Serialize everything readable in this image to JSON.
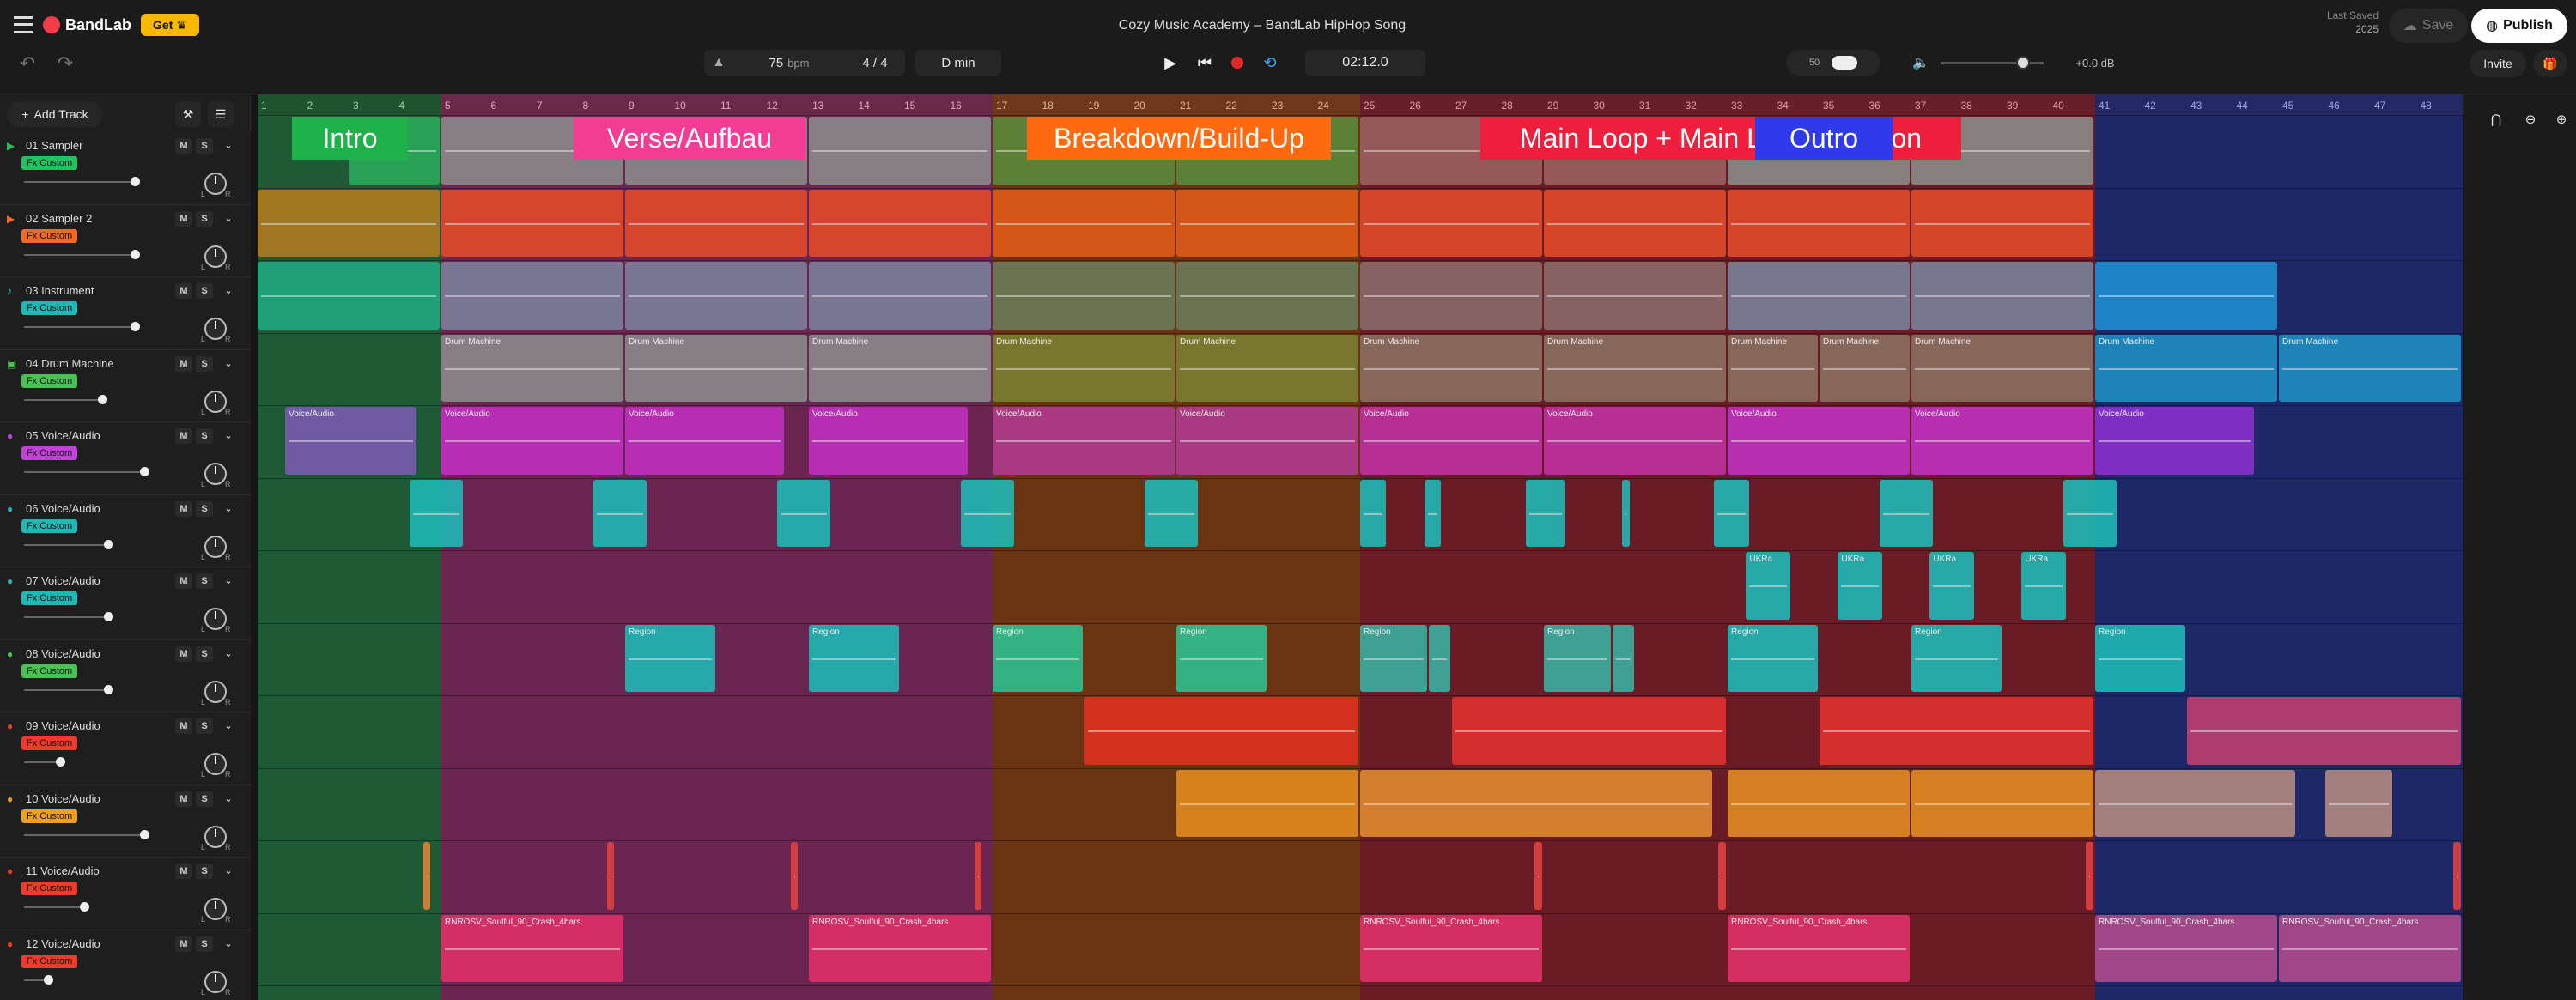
{
  "app": {
    "logo": "BandLab",
    "get_label": "Get",
    "song_title": "Cozy Music Academy – BandLab HipHop Song",
    "last_saved": "Last Saved",
    "last_saved_date": "2025",
    "save_label": "Save",
    "publish_label": "Publish",
    "invite_label": "Invite"
  },
  "transport": {
    "bpm": "75",
    "bpm_unit": "bpm",
    "time_sig": "4 / 4",
    "key": "D min",
    "time": "02:12.0",
    "volume_db": "+0.0 dB",
    "input_level": "50"
  },
  "sidebar": {
    "add_track_label": "Add Track"
  },
  "sections": [
    {
      "label": "Intro",
      "bg": "#1fb14a",
      "start": 1,
      "end": 5
    },
    {
      "label": "Verse/Aufbau",
      "bg": "#f33c94",
      "start": 5,
      "end": 17
    },
    {
      "label": "Breakdown/Build-Up",
      "bg": "#ff6a10",
      "start": 17,
      "end": 25
    },
    {
      "label": "Main Loop + Main Loop Variation",
      "bg": "#ee1f3c",
      "start": 25,
      "end": 41
    },
    {
      "label": "Outro",
      "bg": "#2f3bea",
      "start": 41,
      "end": 49
    }
  ],
  "ruler": [
    "1",
    "2",
    "3",
    "4",
    "5",
    "6",
    "7",
    "8",
    "9",
    "10",
    "11",
    "12",
    "13",
    "14",
    "15",
    "16",
    "17",
    "18",
    "19",
    "20",
    "21",
    "22",
    "23",
    "24",
    "25",
    "26",
    "27",
    "28",
    "29",
    "30",
    "31",
    "32",
    "33",
    "34",
    "35",
    "36",
    "37",
    "38",
    "39",
    "40",
    "41",
    "42",
    "43",
    "44",
    "45",
    "46",
    "47",
    "48"
  ],
  "tracks": [
    {
      "name": "01  Sampler",
      "fx": "Fx Custom",
      "color": "#23c261",
      "icon": "play-icon",
      "vol": 0.92
    },
    {
      "name": "02  Sampler 2",
      "fx": "Fx Custom",
      "color": "#f06a24",
      "icon": "play-icon",
      "vol": 0.92
    },
    {
      "name": "03  Instrument",
      "fx": "Fx Custom",
      "color": "#1fb8b5",
      "icon": "guitar-icon",
      "vol": 0.92
    },
    {
      "name": "04  Drum Machine",
      "fx": "Fx Custom",
      "color": "#4ac253",
      "icon": "drum-icon",
      "vol": 0.65
    },
    {
      "name": "05  Voice/Audio",
      "fx": "Fx Custom",
      "color": "#c142d9",
      "icon": "mic-icon",
      "vol": 1.0
    },
    {
      "name": "06  Voice/Audio",
      "fx": "Fx Custom",
      "color": "#1fb8b5",
      "icon": "mic-icon",
      "vol": 0.7
    },
    {
      "name": "07  Voice/Audio",
      "fx": "Fx Custom",
      "color": "#1fb8b5",
      "icon": "mic-icon",
      "vol": 0.7
    },
    {
      "name": "08  Voice/Audio",
      "fx": "Fx Custom",
      "color": "#4ac253",
      "icon": "mic-icon",
      "vol": 0.7
    },
    {
      "name": "09  Voice/Audio",
      "fx": "Fx Custom",
      "color": "#ee3b2a",
      "icon": "mic-icon",
      "vol": 0.3
    },
    {
      "name": "10  Voice/Audio",
      "fx": "Fx Custom",
      "color": "#f0a020",
      "icon": "mic-icon",
      "vol": 1.0
    },
    {
      "name": "11  Voice/Audio",
      "fx": "Fx Custom",
      "color": "#ee3b2a",
      "icon": "mic-icon",
      "vol": 0.5
    },
    {
      "name": "12  Voice/Audio",
      "fx": "Fx Custom",
      "color": "#ee3b2a",
      "icon": "mic-icon",
      "vol": 0.2
    }
  ],
  "clips": [
    {
      "t": 0,
      "s": 3,
      "e": 5,
      "c": "#2aa85a",
      "l": ""
    },
    {
      "t": 0,
      "s": 5,
      "e": 9,
      "c": "#8a8a8a",
      "l": ""
    },
    {
      "t": 0,
      "s": 9,
      "e": 13,
      "c": "#8a8a8a",
      "l": ""
    },
    {
      "t": 0,
      "s": 13,
      "e": 17,
      "c": "#8a8a8a",
      "l": ""
    },
    {
      "t": 0,
      "s": 17,
      "e": 21,
      "c": "#5b8a3a",
      "l": ""
    },
    {
      "t": 0,
      "s": 21,
      "e": 25,
      "c": "#5b8a3a",
      "l": ""
    },
    {
      "t": 0,
      "s": 25,
      "e": 29,
      "c": "#9a6060",
      "l": ""
    },
    {
      "t": 0,
      "s": 29,
      "e": 33,
      "c": "#9a6060",
      "l": ""
    },
    {
      "t": 0,
      "s": 33,
      "e": 37,
      "c": "#8a8a8a",
      "l": ""
    },
    {
      "t": 0,
      "s": 37,
      "e": 41,
      "c": "#8a8a8a",
      "l": ""
    },
    {
      "t": 1,
      "s": 1,
      "e": 5,
      "c": "#b07a20",
      "l": ""
    },
    {
      "t": 1,
      "s": 5,
      "e": 9,
      "c": "#e04a2a",
      "l": ""
    },
    {
      "t": 1,
      "s": 9,
      "e": 13,
      "c": "#e04a2a",
      "l": ""
    },
    {
      "t": 1,
      "s": 13,
      "e": 17,
      "c": "#e04a2a",
      "l": ""
    },
    {
      "t": 1,
      "s": 17,
      "e": 21,
      "c": "#e05a18",
      "l": ""
    },
    {
      "t": 1,
      "s": 21,
      "e": 25,
      "c": "#e05a18",
      "l": ""
    },
    {
      "t": 1,
      "s": 25,
      "e": 29,
      "c": "#e04a2a",
      "l": ""
    },
    {
      "t": 1,
      "s": 29,
      "e": 33,
      "c": "#e04a2a",
      "l": ""
    },
    {
      "t": 1,
      "s": 33,
      "e": 37,
      "c": "#e04a2a",
      "l": ""
    },
    {
      "t": 1,
      "s": 37,
      "e": 41,
      "c": "#e04a2a",
      "l": ""
    },
    {
      "t": 2,
      "s": 1,
      "e": 5,
      "c": "#1fa880",
      "l": ""
    },
    {
      "t": 2,
      "s": 5,
      "e": 9,
      "c": "#7a7f9a",
      "l": ""
    },
    {
      "t": 2,
      "s": 9,
      "e": 13,
      "c": "#7a7f9a",
      "l": ""
    },
    {
      "t": 2,
      "s": 13,
      "e": 17,
      "c": "#7a7f9a",
      "l": ""
    },
    {
      "t": 2,
      "s": 17,
      "e": 21,
      "c": "#6a7a5a",
      "l": ""
    },
    {
      "t": 2,
      "s": 21,
      "e": 25,
      "c": "#6a7a5a",
      "l": ""
    },
    {
      "t": 2,
      "s": 25,
      "e": 29,
      "c": "#8a6a6a",
      "l": ""
    },
    {
      "t": 2,
      "s": 29,
      "e": 33,
      "c": "#8a6a6a",
      "l": ""
    },
    {
      "t": 2,
      "s": 33,
      "e": 37,
      "c": "#7a7f9a",
      "l": ""
    },
    {
      "t": 2,
      "s": 37,
      "e": 41,
      "c": "#7a7f9a",
      "l": ""
    },
    {
      "t": 2,
      "s": 41,
      "e": 45,
      "c": "#1f8fd0",
      "l": ""
    },
    {
      "t": 3,
      "s": 5,
      "e": 9,
      "c": "#8a8a8a",
      "l": "Drum Machine"
    },
    {
      "t": 3,
      "s": 9,
      "e": 13,
      "c": "#8a8a8a",
      "l": "Drum Machine"
    },
    {
      "t": 3,
      "s": 13,
      "e": 17,
      "c": "#8a8a8a",
      "l": "Drum Machine"
    },
    {
      "t": 3,
      "s": 17,
      "e": 21,
      "c": "#7a7f30",
      "l": "Drum Machine"
    },
    {
      "t": 3,
      "s": 21,
      "e": 25,
      "c": "#7a7f30",
      "l": "Drum Machine"
    },
    {
      "t": 3,
      "s": 25,
      "e": 29,
      "c": "#8a7060",
      "l": "Drum Machine"
    },
    {
      "t": 3,
      "s": 29,
      "e": 33,
      "c": "#8a7060",
      "l": "Drum Machine"
    },
    {
      "t": 3,
      "s": 33,
      "e": 35,
      "c": "#8a7060",
      "l": "Drum Machine"
    },
    {
      "t": 3,
      "s": 35,
      "e": 37,
      "c": "#8a7060",
      "l": "Drum Machine"
    },
    {
      "t": 3,
      "s": 37,
      "e": 41,
      "c": "#8a7060",
      "l": "Drum Machine"
    },
    {
      "t": 3,
      "s": 41,
      "e": 45,
      "c": "#1f8fc0",
      "l": "Drum Machine"
    },
    {
      "t": 3,
      "s": 45,
      "e": 49,
      "c": "#1f8fc0",
      "l": "Drum Machine"
    },
    {
      "t": 4,
      "s": 1.6,
      "e": 4.5,
      "c": "#7a5ab0",
      "l": "Voice/Audio"
    },
    {
      "t": 4,
      "s": 5,
      "e": 9,
      "c": "#c030c0",
      "l": "Voice/Audio"
    },
    {
      "t": 4,
      "s": 9,
      "e": 12.5,
      "c": "#c030c0",
      "l": "Voice/Audio"
    },
    {
      "t": 4,
      "s": 13,
      "e": 16.5,
      "c": "#c030c0",
      "l": "Voice/Audio"
    },
    {
      "t": 4,
      "s": 17,
      "e": 21,
      "c": "#b03a90",
      "l": "Voice/Audio"
    },
    {
      "t": 4,
      "s": 21,
      "e": 25,
      "c": "#b03a90",
      "l": "Voice/Audio"
    },
    {
      "t": 4,
      "s": 25,
      "e": 29,
      "c": "#c030a0",
      "l": "Voice/Audio"
    },
    {
      "t": 4,
      "s": 29,
      "e": 33,
      "c": "#c030a0",
      "l": "Voice/Audio"
    },
    {
      "t": 4,
      "s": 33,
      "e": 37,
      "c": "#c030c0",
      "l": "Voice/Audio"
    },
    {
      "t": 4,
      "s": 37,
      "e": 41,
      "c": "#c030c0",
      "l": "Voice/Audio"
    },
    {
      "t": 4,
      "s": 41,
      "e": 44.5,
      "c": "#8a30d0",
      "l": "Voice/Audio"
    },
    {
      "t": 5,
      "s": 4.3,
      "e": 5.5,
      "c": "#1fb8b5",
      "l": ""
    },
    {
      "t": 5,
      "s": 8.3,
      "e": 9.5,
      "c": "#1fb8b5",
      "l": ""
    },
    {
      "t": 5,
      "s": 12.3,
      "e": 13.5,
      "c": "#1fb8b5",
      "l": ""
    },
    {
      "t": 5,
      "s": 16.3,
      "e": 17.5,
      "c": "#1fb8b5",
      "l": ""
    },
    {
      "t": 5,
      "s": 20.3,
      "e": 21.5,
      "c": "#1fb8b5",
      "l": ""
    },
    {
      "t": 5,
      "s": 25,
      "e": 25.6,
      "c": "#1fb8b5",
      "l": ""
    },
    {
      "t": 5,
      "s": 26.4,
      "e": 26.8,
      "c": "#1fb8b5",
      "l": ""
    },
    {
      "t": 5,
      "s": 28.6,
      "e": 29.5,
      "c": "#1fb8b5",
      "l": ""
    },
    {
      "t": 5,
      "s": 30.7,
      "e": 30.9,
      "c": "#1fb8b5",
      "l": ""
    },
    {
      "t": 5,
      "s": 32.7,
      "e": 33.5,
      "c": "#1fb8b5",
      "l": ""
    },
    {
      "t": 5,
      "s": 36.3,
      "e": 37.5,
      "c": "#1fb8b5",
      "l": ""
    },
    {
      "t": 5,
      "s": 40.3,
      "e": 41.5,
      "c": "#1fb8b5",
      "l": ""
    },
    {
      "t": 6,
      "s": 33.4,
      "e": 34.4,
      "c": "#1fb8b5",
      "l": "UKRa"
    },
    {
      "t": 6,
      "s": 35.4,
      "e": 36.4,
      "c": "#1fb8b5",
      "l": "UKRa"
    },
    {
      "t": 6,
      "s": 37.4,
      "e": 38.4,
      "c": "#1fb8b5",
      "l": "UKRa"
    },
    {
      "t": 6,
      "s": 39.4,
      "e": 40.4,
      "c": "#1fb8b5",
      "l": "UKRa"
    },
    {
      "t": 7,
      "s": 9,
      "e": 11,
      "c": "#1fb8b5",
      "l": "Region"
    },
    {
      "t": 7,
      "s": 13,
      "e": 15,
      "c": "#1fb8b5",
      "l": "Region"
    },
    {
      "t": 7,
      "s": 17,
      "e": 19,
      "c": "#2fc090",
      "l": "Region"
    },
    {
      "t": 7,
      "s": 21,
      "e": 23,
      "c": "#2fc090",
      "l": "Region"
    },
    {
      "t": 7,
      "s": 25,
      "e": 26.5,
      "c": "#3ab0a0",
      "l": "Region"
    },
    {
      "t": 7,
      "s": 26.5,
      "e": 27,
      "c": "#3ab0a0",
      "l": ""
    },
    {
      "t": 7,
      "s": 29,
      "e": 30.5,
      "c": "#3ab0a0",
      "l": "Region"
    },
    {
      "t": 7,
      "s": 30.5,
      "e": 31,
      "c": "#3ab0a0",
      "l": ""
    },
    {
      "t": 7,
      "s": 33,
      "e": 35,
      "c": "#1fb8b5",
      "l": "Region"
    },
    {
      "t": 7,
      "s": 37,
      "e": 39,
      "c": "#1fb8b5",
      "l": "Region"
    },
    {
      "t": 7,
      "s": 41,
      "e": 43,
      "c": "#1fb8b5",
      "l": "Region"
    },
    {
      "t": 8,
      "s": 19,
      "e": 25,
      "c": "#e03020",
      "l": ""
    },
    {
      "t": 8,
      "s": 27,
      "e": 33,
      "c": "#e03030",
      "l": ""
    },
    {
      "t": 8,
      "s": 35,
      "e": 41,
      "c": "#e03030",
      "l": ""
    },
    {
      "t": 8,
      "s": 43,
      "e": 49,
      "c": "#c04070",
      "l": ""
    },
    {
      "t": 9,
      "s": 21,
      "e": 25,
      "c": "#e08a20",
      "l": ""
    },
    {
      "t": 9,
      "s": 25,
      "e": 32.7,
      "c": "#e08a30",
      "l": ""
    },
    {
      "t": 9,
      "s": 33,
      "e": 37,
      "c": "#e08a20",
      "l": ""
    },
    {
      "t": 9,
      "s": 37,
      "e": 41,
      "c": "#e08a20",
      "l": ""
    },
    {
      "t": 9,
      "s": 41,
      "e": 45.4,
      "c": "#b08a80",
      "l": ""
    },
    {
      "t": 9,
      "s": 46,
      "e": 47.5,
      "c": "#b08a80",
      "l": ""
    },
    {
      "t": 10,
      "s": 4.6,
      "e": 4.8,
      "c": "#e08030",
      "l": ""
    },
    {
      "t": 10,
      "s": 8.6,
      "e": 8.8,
      "c": "#e04040",
      "l": ""
    },
    {
      "t": 10,
      "s": 12.6,
      "e": 12.8,
      "c": "#e04040",
      "l": ""
    },
    {
      "t": 10,
      "s": 16.6,
      "e": 16.8,
      "c": "#e04040",
      "l": ""
    },
    {
      "t": 10,
      "s": 28.8,
      "e": 29,
      "c": "#e04040",
      "l": ""
    },
    {
      "t": 10,
      "s": 32.8,
      "e": 33,
      "c": "#e04040",
      "l": ""
    },
    {
      "t": 10,
      "s": 40.8,
      "e": 41,
      "c": "#e04040",
      "l": ""
    },
    {
      "t": 10,
      "s": 48.8,
      "e": 49,
      "c": "#e04040",
      "l": ""
    },
    {
      "t": 11,
      "s": 5,
      "e": 9,
      "c": "#e0306a",
      "l": "RNROSV_Soulful_90_Crash_4bars"
    },
    {
      "t": 11,
      "s": 13,
      "e": 17,
      "c": "#e0306a",
      "l": "RNROSV_Soulful_90_Crash_4bars"
    },
    {
      "t": 11,
      "s": 25,
      "e": 29,
      "c": "#e0306a",
      "l": "RNROSV_Soulful_90_Crash_4bars"
    },
    {
      "t": 11,
      "s": 33,
      "e": 37,
      "c": "#e0306a",
      "l": "RNROSV_Soulful_90_Crash_4bars"
    },
    {
      "t": 11,
      "s": 41,
      "e": 45,
      "c": "#b04a8a",
      "l": "RNROSV_Soulful_90_Crash_4bars"
    },
    {
      "t": 11,
      "s": 45,
      "e": 49,
      "c": "#b04a8a",
      "l": "RNROSV_Soulful_90_Crash_4bars"
    }
  ]
}
